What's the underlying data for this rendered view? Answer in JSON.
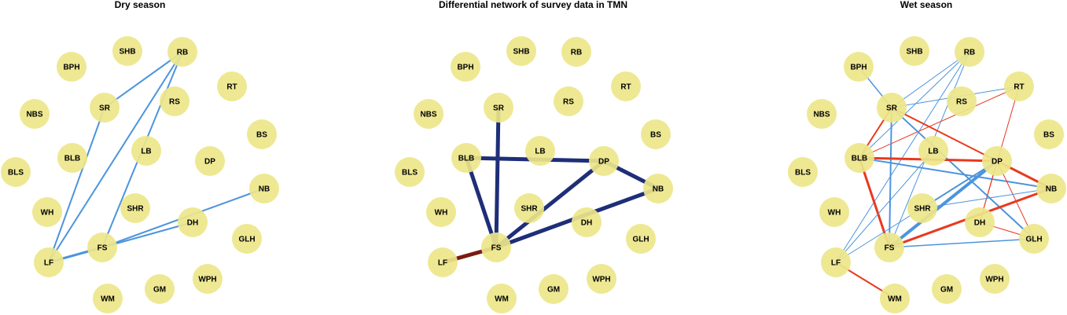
{
  "panels": [
    {
      "id": "dry",
      "title": "Dry season",
      "edges": [
        {
          "from": "RB",
          "to": "SR",
          "type": "blue",
          "weight": 2
        },
        {
          "from": "RB",
          "to": "LF",
          "type": "blue",
          "weight": 2
        },
        {
          "from": "RB",
          "to": "FS",
          "type": "blue",
          "weight": 2
        },
        {
          "from": "SR",
          "to": "LF",
          "type": "blue",
          "weight": 2
        },
        {
          "from": "LF",
          "to": "FS",
          "type": "blue",
          "weight": 3
        },
        {
          "from": "FS",
          "to": "NB",
          "type": "blue",
          "weight": 2
        },
        {
          "from": "FS",
          "to": "DH",
          "type": "blue",
          "weight": 2
        }
      ]
    },
    {
      "id": "diff",
      "title": "Differential network of survey data in TMN",
      "edges": [
        {
          "from": "SR",
          "to": "FS",
          "type": "navy",
          "weight": 5
        },
        {
          "from": "BLB",
          "to": "FS",
          "type": "navy",
          "weight": 5
        },
        {
          "from": "BLB",
          "to": "DP",
          "type": "navy",
          "weight": 5
        },
        {
          "from": "DP",
          "to": "NB",
          "type": "navy",
          "weight": 5
        },
        {
          "from": "DP",
          "to": "FS",
          "type": "navy",
          "weight": 5
        },
        {
          "from": "NB",
          "to": "FS",
          "type": "navy",
          "weight": 5
        },
        {
          "from": "LF",
          "to": "FS",
          "type": "darkred",
          "weight": 5
        }
      ]
    },
    {
      "id": "wet",
      "title": "Wet season",
      "edges": [
        {
          "from": "BPH",
          "to": "SR",
          "type": "blue",
          "weight": 1.5
        },
        {
          "from": "RB",
          "to": "SR",
          "type": "blue",
          "weight": 1
        },
        {
          "from": "RB",
          "to": "BLB",
          "type": "blue",
          "weight": 1
        },
        {
          "from": "RB",
          "to": "FS",
          "type": "blue",
          "weight": 1
        },
        {
          "from": "RB",
          "to": "LF",
          "type": "blue",
          "weight": 1
        },
        {
          "from": "RT",
          "to": "SR",
          "type": "blue",
          "weight": 1
        },
        {
          "from": "RT",
          "to": "BLB",
          "type": "red",
          "weight": 1
        },
        {
          "from": "RT",
          "to": "DH",
          "type": "red",
          "weight": 1
        },
        {
          "from": "SR",
          "to": "BLB",
          "type": "red",
          "weight": 2
        },
        {
          "from": "SR",
          "to": "FS",
          "type": "blue",
          "weight": 2
        },
        {
          "from": "SR",
          "to": "DP",
          "type": "red",
          "weight": 2
        },
        {
          "from": "SR",
          "to": "GLH",
          "type": "blue",
          "weight": 2
        },
        {
          "from": "BLB",
          "to": "DP",
          "type": "red",
          "weight": 3
        },
        {
          "from": "BLB",
          "to": "NB",
          "type": "blue",
          "weight": 2
        },
        {
          "from": "BLB",
          "to": "FS",
          "type": "red",
          "weight": 3
        },
        {
          "from": "LB",
          "to": "LF",
          "type": "blue",
          "weight": 1
        },
        {
          "from": "DP",
          "to": "NB",
          "type": "red",
          "weight": 3
        },
        {
          "from": "DP",
          "to": "FS",
          "type": "blue",
          "weight": 4
        },
        {
          "from": "DP",
          "to": "SHR",
          "type": "blue",
          "weight": 2
        },
        {
          "from": "DP",
          "to": "LF",
          "type": "blue",
          "weight": 1
        },
        {
          "from": "DP",
          "to": "GLH",
          "type": "red",
          "weight": 1
        },
        {
          "from": "DP",
          "to": "DH",
          "type": "red",
          "weight": 1
        },
        {
          "from": "NB",
          "to": "FS",
          "type": "red",
          "weight": 3
        },
        {
          "from": "NB",
          "to": "SHR",
          "type": "blue",
          "weight": 1
        },
        {
          "from": "FS",
          "to": "GLH",
          "type": "blue",
          "weight": 1.5
        },
        {
          "from": "DH",
          "to": "GLH",
          "type": "red",
          "weight": 1
        },
        {
          "from": "LF",
          "to": "WM",
          "type": "red",
          "weight": 2
        }
      ]
    }
  ],
  "nodes": [
    "SHB",
    "RB",
    "BPH",
    "RT",
    "SR",
    "RS",
    "NBS",
    "BS",
    "LB",
    "DP",
    "BLB",
    "BLS",
    "NB",
    "WH",
    "SHR",
    "DH",
    "GLH",
    "FS",
    "LF",
    "WPH",
    "GM",
    "WM"
  ],
  "edge_colors": {
    "blue": "#4c94dc",
    "red": "#e8391f",
    "navy": "#1e2e78",
    "darkred": "#7a1a0e"
  },
  "node_color": "#ede68a"
}
